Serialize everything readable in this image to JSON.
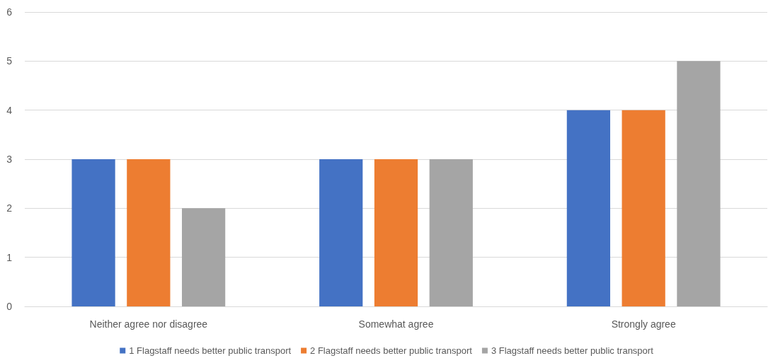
{
  "chart_data": {
    "type": "bar",
    "categories": [
      "Neither agree nor disagree",
      "Somewhat agree",
      "Strongly agree"
    ],
    "series": [
      {
        "name": "1 Flagstaff needs better public transport",
        "color": "#4472c4",
        "values": [
          3,
          3,
          4
        ]
      },
      {
        "name": "2 Flagstaff needs better public transport",
        "color": "#ed7d31",
        "values": [
          3,
          3,
          4
        ]
      },
      {
        "name": "3 Flagstaff needs better public transport",
        "color": "#a5a5a5",
        "values": [
          2,
          3,
          5
        ]
      }
    ],
    "ylim": [
      0,
      6
    ],
    "yticks": [
      0,
      1,
      2,
      3,
      4,
      5,
      6
    ],
    "grid": "y",
    "legend": "bottom"
  }
}
